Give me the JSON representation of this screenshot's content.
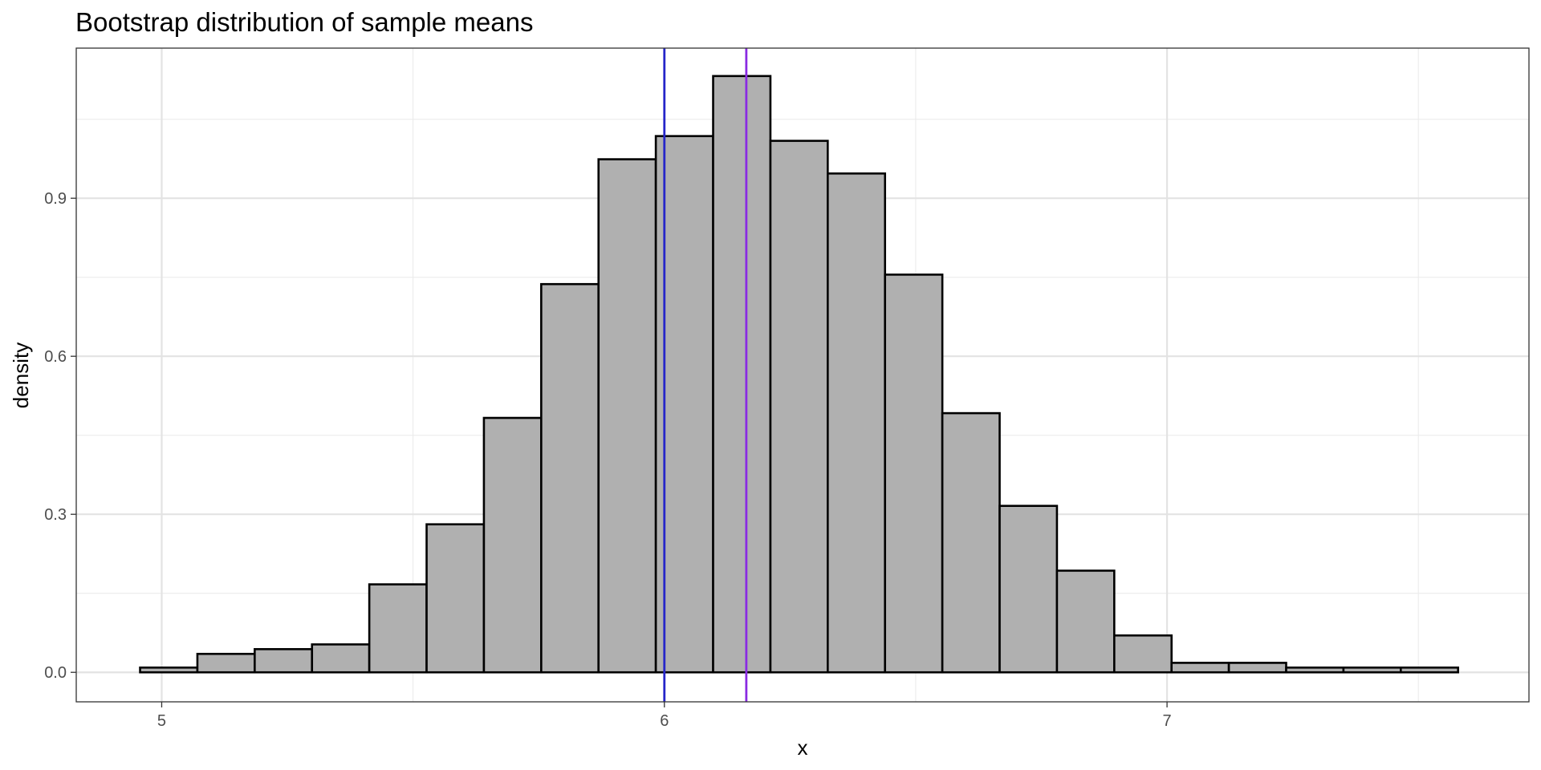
{
  "chart_data": {
    "type": "bar",
    "title": "Bootstrap distribution of sample means",
    "xlabel": "x",
    "ylabel": "density",
    "xlim": [
      4.83,
      7.72
    ],
    "ylim": [
      -0.056,
      1.185
    ],
    "x_ticks": [
      {
        "value": 5,
        "label": "5"
      },
      {
        "value": 6,
        "label": "6"
      },
      {
        "value": 7,
        "label": "7"
      }
    ],
    "y_ticks": [
      {
        "value": 0.0,
        "label": "0.0"
      },
      {
        "value": 0.3,
        "label": "0.3"
      },
      {
        "value": 0.6,
        "label": "0.6"
      },
      {
        "value": 0.9,
        "label": "0.9"
      }
    ],
    "grid": true,
    "bar_fill": "#b0b0b0",
    "bar_outline": "#000000",
    "bins": [
      {
        "x0": 4.957,
        "x1": 5.071,
        "density": 0.009
      },
      {
        "x0": 5.071,
        "x1": 5.185,
        "density": 0.035
      },
      {
        "x0": 5.185,
        "x1": 5.299,
        "density": 0.044
      },
      {
        "x0": 5.299,
        "x1": 5.413,
        "density": 0.053
      },
      {
        "x0": 5.413,
        "x1": 5.527,
        "density": 0.167
      },
      {
        "x0": 5.527,
        "x1": 5.641,
        "density": 0.281
      },
      {
        "x0": 5.641,
        "x1": 5.755,
        "density": 0.483
      },
      {
        "x0": 5.755,
        "x1": 5.869,
        "density": 0.737
      },
      {
        "x0": 5.869,
        "x1": 5.983,
        "density": 0.974
      },
      {
        "x0": 5.983,
        "x1": 6.097,
        "density": 1.018
      },
      {
        "x0": 6.097,
        "x1": 6.211,
        "density": 1.132
      },
      {
        "x0": 6.211,
        "x1": 6.325,
        "density": 1.009
      },
      {
        "x0": 6.325,
        "x1": 6.439,
        "density": 0.947
      },
      {
        "x0": 6.439,
        "x1": 6.553,
        "density": 0.755
      },
      {
        "x0": 6.553,
        "x1": 6.667,
        "density": 0.492
      },
      {
        "x0": 6.667,
        "x1": 6.781,
        "density": 0.316
      },
      {
        "x0": 6.781,
        "x1": 6.895,
        "density": 0.193
      },
      {
        "x0": 6.895,
        "x1": 7.009,
        "density": 0.07
      },
      {
        "x0": 7.009,
        "x1": 7.123,
        "density": 0.018
      },
      {
        "x0": 7.123,
        "x1": 7.237,
        "density": 0.018
      },
      {
        "x0": 7.237,
        "x1": 7.351,
        "density": 0.009
      },
      {
        "x0": 7.351,
        "x1": 7.465,
        "density": 0.009
      },
      {
        "x0": 7.465,
        "x1": 7.579,
        "density": 0.009
      }
    ],
    "vlines": [
      {
        "x": 6.0,
        "color": "#2626c9"
      },
      {
        "x": 6.163,
        "color": "#8a2be2"
      }
    ]
  }
}
